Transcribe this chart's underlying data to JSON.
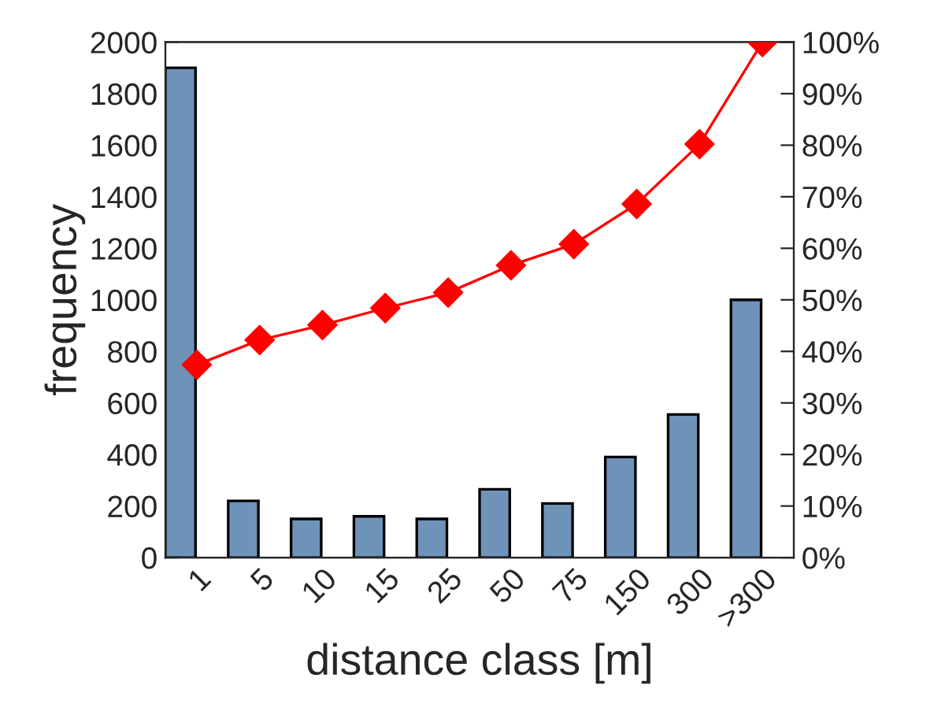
{
  "chart_data": {
    "type": "bar",
    "xlabel": "distance class [m]",
    "ylabel": "frequency",
    "categories": [
      "1",
      "5",
      "10",
      "15",
      "25",
      "50",
      "75",
      "150",
      "300",
      ">300"
    ],
    "series": [
      {
        "color": "#6f93b8",
        "values": [
          1900,
          220,
          150,
          160,
          150,
          265,
          210,
          390,
          555,
          1000
        ]
      },
      {
        "type": "line",
        "axis": "y2",
        "color": "#ff0000",
        "marker": "diamond",
        "line_style": "solid",
        "values": [
          37.4,
          42.2,
          45.1,
          48.4,
          51.4,
          56.7,
          60.8,
          68.6,
          80.2,
          100
        ]
      }
    ],
    "ylim": [
      0,
      2000
    ],
    "yticks": [
      0,
      200,
      400,
      600,
      800,
      1000,
      1200,
      1400,
      1600,
      1800,
      2000
    ],
    "y2lim": [
      0,
      100
    ],
    "y2ticks": [
      {
        "value": 0,
        "label": "0%"
      },
      {
        "value": 10,
        "label": "10%"
      },
      {
        "value": 20,
        "label": "20%"
      },
      {
        "value": 30,
        "label": "30%"
      },
      {
        "value": 40,
        "label": "40%"
      },
      {
        "value": 50,
        "label": "50%"
      },
      {
        "value": 60,
        "label": "60%"
      },
      {
        "value": 70,
        "label": "70%"
      },
      {
        "value": 80,
        "label": "80%"
      },
      {
        "value": 90,
        "label": "90%"
      },
      {
        "value": 100,
        "label": "100%"
      }
    ],
    "grid": false,
    "legend": false
  }
}
